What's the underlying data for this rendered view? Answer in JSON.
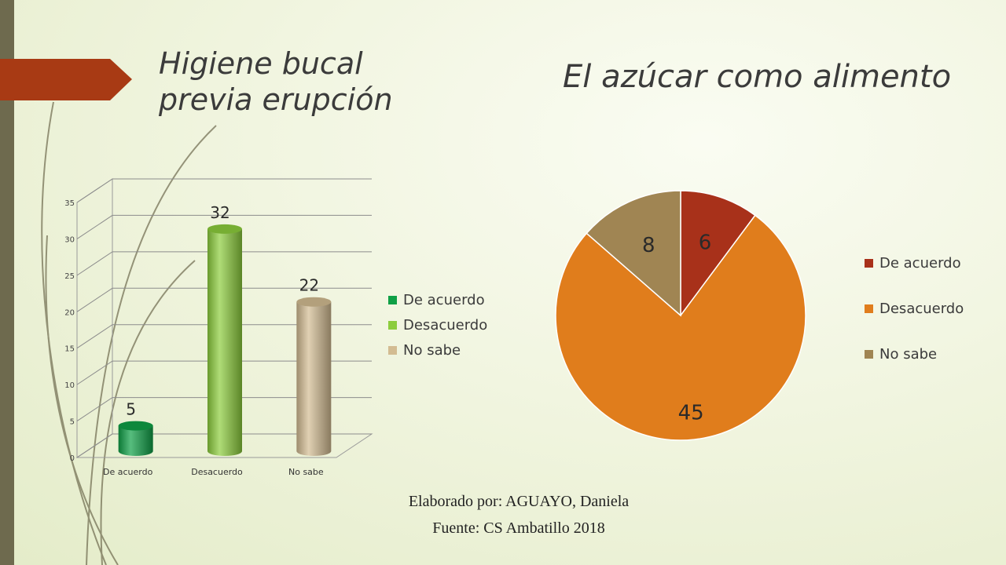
{
  "slide": {
    "title_left": "Higiene bucal previa erupción",
    "title_right": "El azúcar como alimento",
    "credit_author": "Elaborado por: AGUAYO, Daniela",
    "credit_source": "Fuente: CS Ambatillo 2018"
  },
  "chart_data": [
    {
      "type": "bar",
      "title": "",
      "categories": [
        "De acuerdo",
        "Desacuerdo",
        "No sabe"
      ],
      "values": [
        5,
        32,
        22
      ],
      "data_labels": [
        "5",
        "32",
        "22"
      ],
      "colors": [
        "#0fa046",
        "#8ccd3c",
        "#d3bc92"
      ],
      "ylim": [
        0,
        35
      ],
      "yticks": [
        "0",
        "5",
        "10",
        "15",
        "20",
        "25",
        "30",
        "35"
      ],
      "grid": true,
      "legend": [
        "De acuerdo",
        "Desacuerdo",
        "No sabe"
      ],
      "legend_position": "right"
    },
    {
      "type": "pie",
      "title": "",
      "categories": [
        "De acuerdo",
        "Desacuerdo",
        "No sabe"
      ],
      "values": [
        6,
        45,
        8
      ],
      "data_labels": [
        "6",
        "45",
        "8"
      ],
      "colors": [
        "#a8311a",
        "#e07d1c",
        "#a08553"
      ],
      "legend": [
        "De acuerdo",
        "Desacuerdo",
        "No sabe"
      ],
      "legend_position": "right"
    }
  ]
}
